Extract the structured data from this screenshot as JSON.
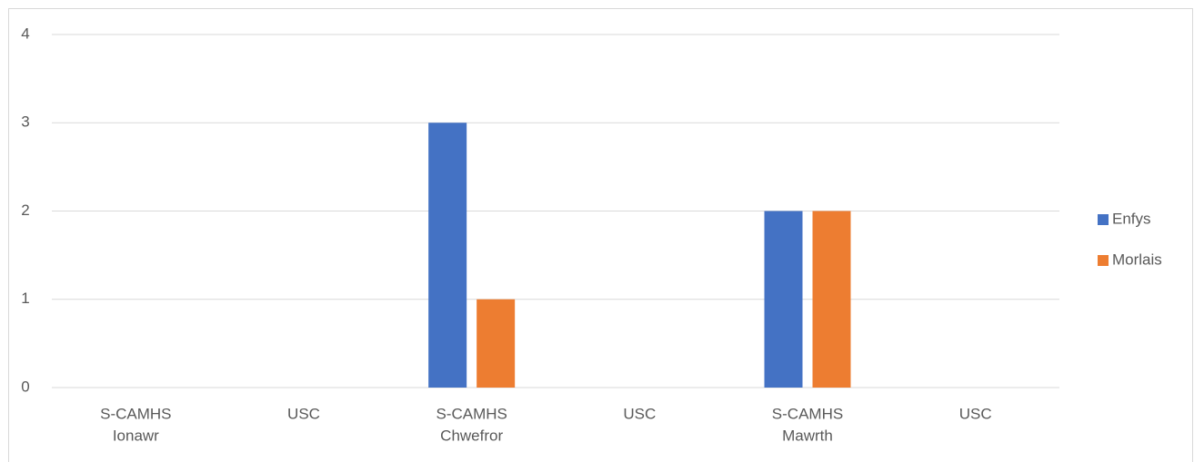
{
  "chart_data": {
    "type": "bar",
    "categories": [
      [
        "S-CAMHS",
        "Ionawr"
      ],
      [
        "USC"
      ],
      [
        "S-CAMHS",
        "Chwefror"
      ],
      [
        "USC"
      ],
      [
        "S-CAMHS",
        "Mawrth"
      ],
      [
        "USC"
      ]
    ],
    "series": [
      {
        "name": "Enfys",
        "color": "#4472c4",
        "values": [
          0,
          0,
          3,
          0,
          2,
          0
        ]
      },
      {
        "name": "Morlais",
        "color": "#ed7d31",
        "values": [
          0,
          0,
          1,
          0,
          2,
          0
        ]
      }
    ],
    "ylim": [
      0,
      4
    ],
    "yticks": [
      0,
      1,
      2,
      3,
      4
    ],
    "grid": true,
    "legend": "right"
  }
}
